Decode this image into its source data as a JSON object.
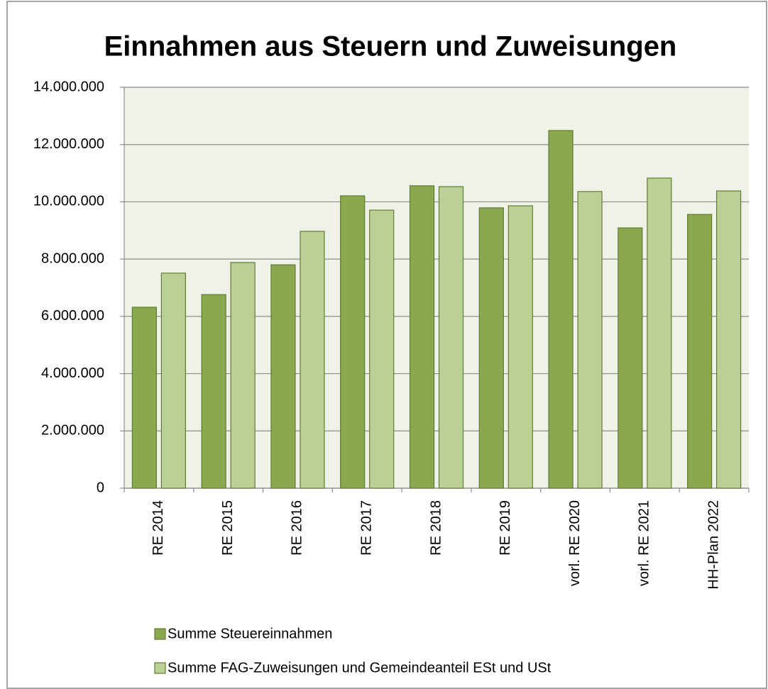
{
  "chart_data": {
    "type": "bar",
    "title": "Einnahmen aus Steuern und Zuweisungen",
    "categories": [
      "RE 2014",
      "RE 2015",
      "RE 2016",
      "RE 2017",
      "RE 2018",
      "RE 2019",
      "vorl. RE 2020",
      "vorl. RE 2021",
      "HH-Plan 2022"
    ],
    "series": [
      {
        "name": "Summe Steuereinnahmen",
        "color": "#8aa84e",
        "values": [
          6320000,
          6760000,
          7800000,
          10210000,
          10560000,
          9790000,
          12490000,
          9090000,
          9560000
        ]
      },
      {
        "name": "Summe FAG-Zuweisungen und Gemeindeanteil ESt und USt",
        "color": "#bcd096",
        "values": [
          7510000,
          7880000,
          8970000,
          9710000,
          10530000,
          9860000,
          10360000,
          10830000,
          10380000
        ]
      }
    ],
    "ylim": [
      0,
      14000000
    ],
    "yticks": [
      0,
      {
        "value": 2000000,
        "label": "2.000.000"
      },
      {
        "value": 4000000,
        "label": "4.000.000"
      },
      {
        "value": 6000000,
        "label": "6.000.000"
      },
      {
        "value": 8000000,
        "label": "8.000.000"
      },
      {
        "value": 10000000,
        "label": "10.000.000"
      },
      {
        "value": 12000000,
        "label": "12.000.000"
      },
      {
        "value": 14000000,
        "label": "14.000.000"
      }
    ],
    "grid": true,
    "legend": "bottom"
  }
}
